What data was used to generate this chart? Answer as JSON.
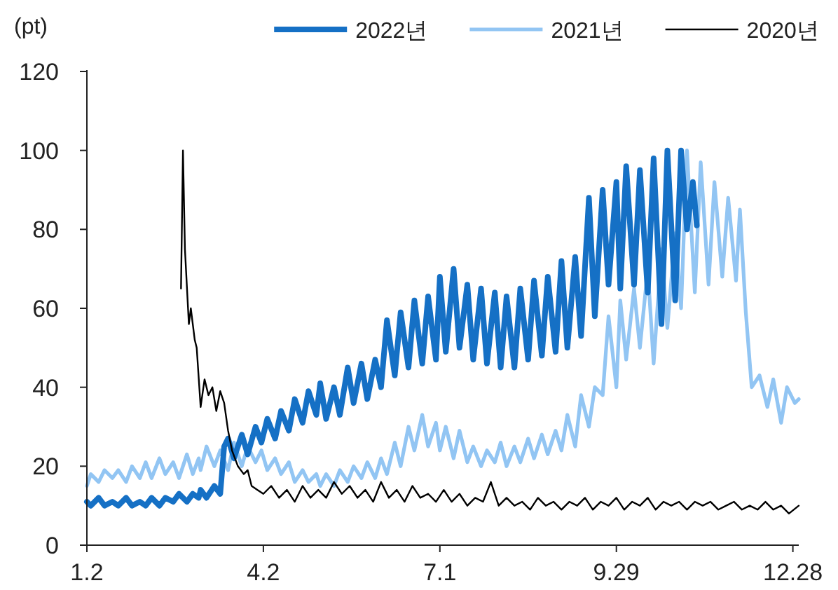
{
  "chart_data": {
    "type": "line",
    "ylabel": "(pt)",
    "legend": "top",
    "ylim": [
      0,
      120
    ],
    "yticks": [
      0,
      20,
      40,
      60,
      80,
      100,
      120
    ],
    "xlim": [
      "--01-02",
      "--12-31"
    ],
    "xticks": [
      {
        "value": "--01-02",
        "label": "1.2"
      },
      {
        "value": "--04-02",
        "label": "4.2"
      },
      {
        "value": "--07-01",
        "label": "7.1"
      },
      {
        "value": "--09-29",
        "label": "9.29"
      },
      {
        "value": "--12-28",
        "label": "12.28"
      }
    ],
    "series": [
      {
        "name": "2022년",
        "color": "#1570c5",
        "x": [
          "--01-02",
          "--01-04",
          "--01-08",
          "--01-11",
          "--01-15",
          "--01-18",
          "--01-22",
          "--01-25",
          "--01-29",
          "--02-01",
          "--02-04",
          "--02-08",
          "--02-11",
          "--02-15",
          "--02-18",
          "--02-22",
          "--02-25",
          "--02-28",
          "--03-01",
          "--03-04",
          "--03-08",
          "--03-11",
          "--03-13",
          "--03-15",
          "--03-18",
          "--03-22",
          "--03-25",
          "--03-29",
          "--04-01",
          "--04-04",
          "--04-08",
          "--04-11",
          "--04-15",
          "--04-18",
          "--04-22",
          "--04-25",
          "--04-29",
          "--05-01",
          "--05-04",
          "--05-08",
          "--05-11",
          "--05-15",
          "--05-18",
          "--05-22",
          "--05-25",
          "--05-29",
          "--06-01",
          "--06-04",
          "--06-08",
          "--06-11",
          "--06-15",
          "--06-18",
          "--06-22",
          "--06-25",
          "--06-29",
          "--07-01",
          "--07-04",
          "--07-08",
          "--07-11",
          "--07-15",
          "--07-18",
          "--07-22",
          "--07-25",
          "--07-29",
          "--08-01",
          "--08-04",
          "--08-08",
          "--08-11",
          "--08-15",
          "--08-18",
          "--08-22",
          "--08-25",
          "--08-29",
          "--09-01",
          "--09-04",
          "--09-08",
          "--09-11",
          "--09-15",
          "--09-18",
          "--09-22",
          "--09-25",
          "--09-29",
          "--10-01",
          "--10-04",
          "--10-08",
          "--10-11",
          "--10-15",
          "--10-18",
          "--10-22",
          "--10-25",
          "--10-29",
          "--11-01",
          "--11-04",
          "--11-07",
          "--11-09"
        ],
        "values": [
          11,
          10,
          12,
          10,
          11,
          10,
          12,
          10,
          11,
          10,
          12,
          10,
          12,
          11,
          13,
          11,
          13,
          12,
          14,
          12,
          15,
          13,
          25,
          27,
          22,
          28,
          23,
          30,
          26,
          32,
          27,
          34,
          29,
          37,
          31,
          39,
          33,
          41,
          32,
          40,
          33,
          45,
          36,
          46,
          37,
          47,
          40,
          57,
          43,
          59,
          45,
          62,
          46,
          63,
          47,
          68,
          49,
          70,
          50,
          66,
          47,
          65,
          46,
          64,
          45,
          63,
          45,
          65,
          47,
          67,
          48,
          68,
          49,
          72,
          50,
          73,
          53,
          88,
          58,
          90,
          66,
          92,
          65,
          96,
          66,
          95,
          64,
          98,
          56,
          100,
          62,
          100,
          80,
          92,
          81
        ]
      },
      {
        "name": "2021년",
        "color": "#92c5f3",
        "x": [
          "--01-02",
          "--01-04",
          "--01-08",
          "--01-11",
          "--01-15",
          "--01-18",
          "--01-22",
          "--01-25",
          "--01-29",
          "--02-01",
          "--02-04",
          "--02-08",
          "--02-11",
          "--02-15",
          "--02-18",
          "--02-22",
          "--02-25",
          "--02-28",
          "--03-01",
          "--03-04",
          "--03-08",
          "--03-11",
          "--03-15",
          "--03-18",
          "--03-22",
          "--03-25",
          "--03-29",
          "--04-01",
          "--04-04",
          "--04-08",
          "--04-11",
          "--04-15",
          "--04-18",
          "--04-22",
          "--04-25",
          "--04-29",
          "--05-01",
          "--05-04",
          "--05-08",
          "--05-11",
          "--05-15",
          "--05-18",
          "--05-22",
          "--05-25",
          "--05-29",
          "--06-01",
          "--06-04",
          "--06-08",
          "--06-11",
          "--06-15",
          "--06-18",
          "--06-22",
          "--06-25",
          "--06-29",
          "--07-01",
          "--07-04",
          "--07-08",
          "--07-11",
          "--07-15",
          "--07-18",
          "--07-22",
          "--07-25",
          "--07-29",
          "--08-01",
          "--08-04",
          "--08-08",
          "--08-11",
          "--08-15",
          "--08-18",
          "--08-22",
          "--08-25",
          "--08-29",
          "--09-01",
          "--09-04",
          "--09-08",
          "--09-11",
          "--09-15",
          "--09-18",
          "--09-22",
          "--09-25",
          "--09-29",
          "--10-01",
          "--10-04",
          "--10-08",
          "--10-11",
          "--10-15",
          "--10-18",
          "--10-22",
          "--10-25",
          "--10-29",
          "--11-01",
          "--11-04",
          "--11-08",
          "--11-11",
          "--11-15",
          "--11-18",
          "--11-22",
          "--11-25",
          "--11-29",
          "--12-01",
          "--12-04",
          "--12-07",
          "--12-11",
          "--12-15",
          "--12-18",
          "--12-22",
          "--12-25",
          "--12-29",
          "--12-31"
        ],
        "values": [
          15,
          18,
          16,
          19,
          17,
          19,
          16,
          20,
          17,
          21,
          17,
          22,
          18,
          21,
          17,
          23,
          18,
          22,
          19,
          25,
          20,
          24,
          19,
          26,
          20,
          25,
          21,
          24,
          19,
          22,
          18,
          21,
          16,
          19,
          16,
          18,
          15,
          18,
          15,
          19,
          16,
          20,
          17,
          21,
          17,
          22,
          18,
          26,
          20,
          30,
          24,
          33,
          25,
          31,
          24,
          30,
          22,
          29,
          21,
          25,
          20,
          24,
          21,
          26,
          20,
          25,
          21,
          27,
          22,
          28,
          23,
          29,
          24,
          33,
          25,
          38,
          30,
          40,
          38,
          58,
          40,
          62,
          47,
          65,
          50,
          70,
          46,
          75,
          55,
          79,
          60,
          100,
          64,
          97,
          66,
          92,
          68,
          88,
          67,
          85,
          59,
          40,
          43,
          35,
          42,
          31,
          40,
          36,
          37
        ]
      },
      {
        "name": "2020년",
        "color": "#000000",
        "x": [
          "--02-19",
          "--02-20",
          "--02-21",
          "--02-23",
          "--02-24",
          "--02-26",
          "--02-27",
          "--03-01",
          "--03-03",
          "--03-05",
          "--03-07",
          "--03-09",
          "--03-11",
          "--03-13",
          "--03-15",
          "--03-17",
          "--03-20",
          "--03-23",
          "--03-25",
          "--03-27",
          "--03-30",
          "--04-02",
          "--04-06",
          "--04-10",
          "--04-14",
          "--04-18",
          "--04-22",
          "--04-26",
          "--04-30",
          "--05-04",
          "--05-08",
          "--05-12",
          "--05-16",
          "--05-20",
          "--05-24",
          "--05-28",
          "--06-01",
          "--06-05",
          "--06-09",
          "--06-13",
          "--06-17",
          "--06-21",
          "--06-25",
          "--06-29",
          "--07-03",
          "--07-07",
          "--07-11",
          "--07-15",
          "--07-19",
          "--07-23",
          "--07-27",
          "--07-31",
          "--08-04",
          "--08-08",
          "--08-12",
          "--08-16",
          "--08-20",
          "--08-24",
          "--08-28",
          "--09-01",
          "--09-05",
          "--09-09",
          "--09-13",
          "--09-17",
          "--09-21",
          "--09-25",
          "--09-29",
          "--10-03",
          "--10-07",
          "--10-11",
          "--10-15",
          "--10-19",
          "--10-23",
          "--10-27",
          "--10-31",
          "--11-04",
          "--11-08",
          "--11-12",
          "--11-16",
          "--11-20",
          "--11-24",
          "--11-28",
          "--12-02",
          "--12-06",
          "--12-10",
          "--12-14",
          "--12-18",
          "--12-22",
          "--12-26",
          "--12-31"
        ],
        "values": [
          65,
          100,
          75,
          56,
          60,
          52,
          50,
          35,
          42,
          38,
          40,
          34,
          39,
          36,
          29,
          24,
          20,
          18,
          19,
          15,
          14,
          13,
          15,
          12,
          14,
          11,
          15,
          12,
          14,
          12,
          16,
          13,
          15,
          12,
          14,
          11,
          16,
          12,
          14,
          11,
          15,
          12,
          13,
          11,
          14,
          11,
          13,
          10,
          12,
          11,
          16,
          10,
          12,
          10,
          11,
          9,
          12,
          10,
          11,
          9,
          11,
          10,
          12,
          9,
          11,
          10,
          12,
          9,
          11,
          10,
          12,
          9,
          11,
          10,
          11,
          9,
          11,
          10,
          11,
          9,
          10,
          11,
          9,
          10,
          9,
          11,
          9,
          10,
          8,
          10
        ]
      }
    ]
  }
}
